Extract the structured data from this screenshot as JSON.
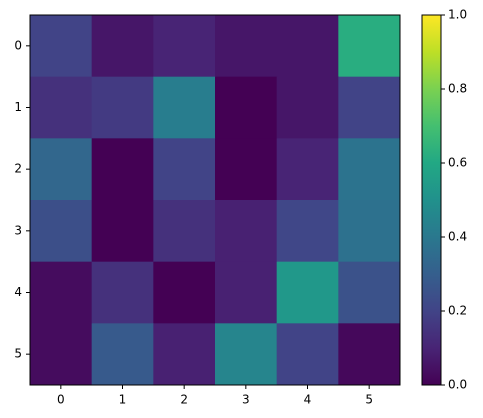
{
  "chart_data": {
    "type": "heatmap",
    "colormap": "viridis",
    "values": [
      [
        0.2,
        0.06,
        0.1,
        0.06,
        0.06,
        0.62
      ],
      [
        0.14,
        0.17,
        0.42,
        0.0,
        0.06,
        0.2
      ],
      [
        0.33,
        0.0,
        0.2,
        0.0,
        0.1,
        0.38
      ],
      [
        0.24,
        0.0,
        0.14,
        0.09,
        0.21,
        0.37
      ],
      [
        0.03,
        0.14,
        0.0,
        0.09,
        0.53,
        0.25
      ],
      [
        0.03,
        0.28,
        0.09,
        0.45,
        0.2,
        0.02
      ]
    ],
    "xticks": [
      0,
      1,
      2,
      3,
      4,
      5
    ],
    "yticks": [
      0,
      1,
      2,
      3,
      4,
      5
    ],
    "clim": [
      0,
      1
    ],
    "cticks": [
      {
        "value": 0,
        "label": "0.0"
      },
      {
        "value": 0.2,
        "label": "0.2"
      },
      {
        "value": 0.4,
        "label": "0.4"
      },
      {
        "value": 0.6,
        "label": "0.6"
      },
      {
        "value": 0.8,
        "label": "0.8"
      },
      {
        "value": 1,
        "label": "1.0"
      }
    ]
  }
}
